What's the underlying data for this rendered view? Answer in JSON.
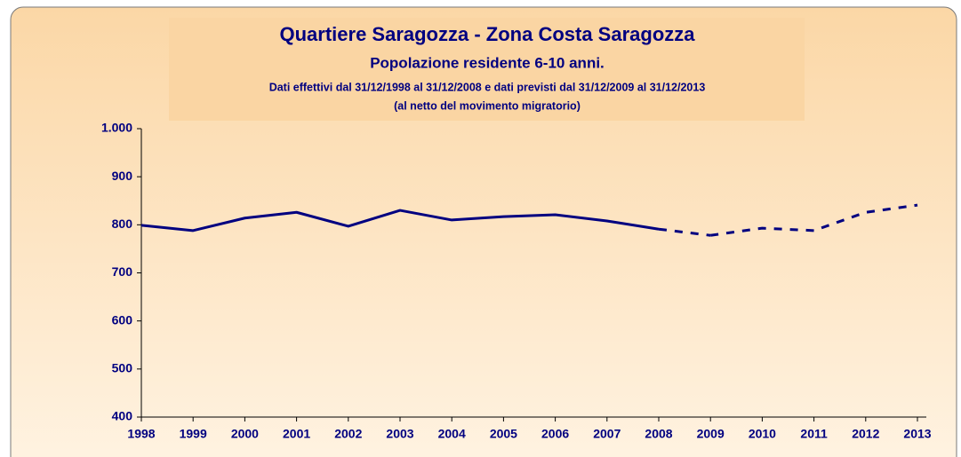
{
  "chart_data": {
    "type": "line",
    "title": "Quartiere Saragozza - Zona Costa Saragozza",
    "subtitle": "Popolazione residente 6-10 anni.",
    "notes": [
      "Dati effettivi dal 31/12/1998 al 31/12/2008 e dati previsti dal 31/12/2009 al 31/12/2013",
      "(al netto del movimento migratorio)"
    ],
    "categories": [
      "1998",
      "1999",
      "2000",
      "2001",
      "2002",
      "2003",
      "2004",
      "2005",
      "2006",
      "2007",
      "2008",
      "2009",
      "2010",
      "2011",
      "2012",
      "2013"
    ],
    "series": [
      {
        "color": "#000080",
        "dash": false,
        "values": [
          799,
          788,
          814,
          826,
          797,
          830,
          810,
          817,
          821,
          808,
          791,
          null,
          null,
          null,
          null,
          null
        ]
      },
      {
        "color": "#000080",
        "dash": true,
        "values": [
          null,
          null,
          null,
          null,
          null,
          null,
          null,
          null,
          null,
          null,
          null,
          778,
          793,
          788,
          826,
          841
        ]
      }
    ],
    "ylim": [
      400,
      1000
    ],
    "yticks": [
      400,
      500,
      600,
      700,
      800,
      900,
      {
        "value": 1000,
        "label": "1.000"
      }
    ]
  }
}
